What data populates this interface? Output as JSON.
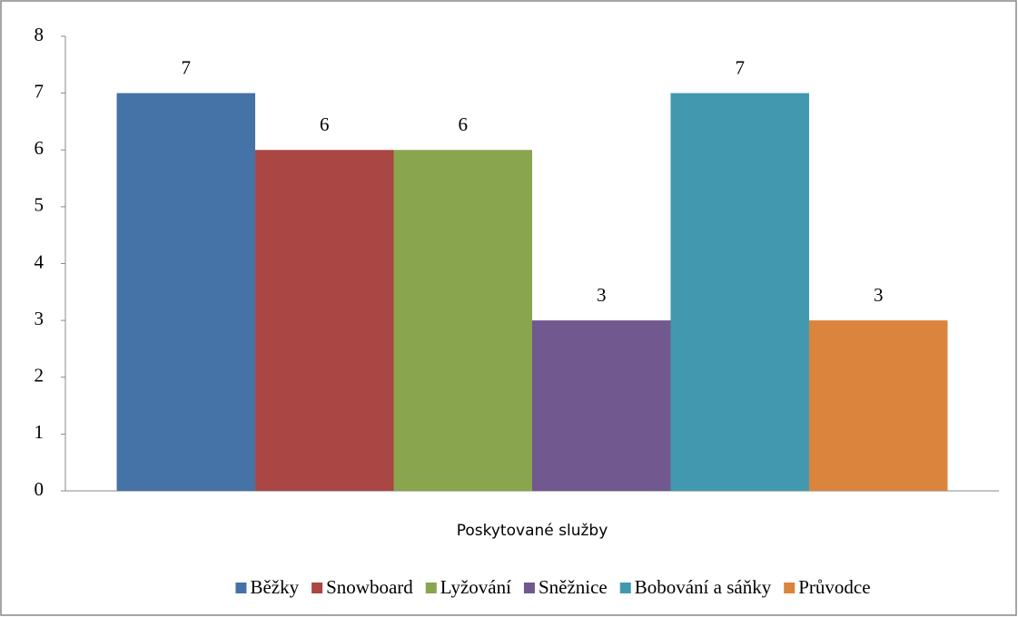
{
  "chart_data": {
    "type": "bar",
    "categories": [
      "Poskytované služby"
    ],
    "series": [
      {
        "name": "Běžky",
        "color": "#4572a7",
        "values": [
          7
        ]
      },
      {
        "name": "Snowboard",
        "color": "#aa4643",
        "values": [
          6
        ]
      },
      {
        "name": "Lyžování",
        "color": "#89a54e",
        "values": [
          6
        ]
      },
      {
        "name": "Sněžnice",
        "color": "#71588f",
        "values": [
          3
        ]
      },
      {
        "name": "Bobování a sáňky",
        "color": "#4198af",
        "values": [
          7
        ]
      },
      {
        "name": "Průvodce",
        "color": "#db843d",
        "values": [
          3
        ]
      }
    ],
    "ylim": [
      0,
      8
    ],
    "yticks": [
      0,
      1,
      2,
      3,
      4,
      5,
      6,
      7,
      8
    ],
    "grid": false,
    "legend": "bottom",
    "data_labels": true
  }
}
